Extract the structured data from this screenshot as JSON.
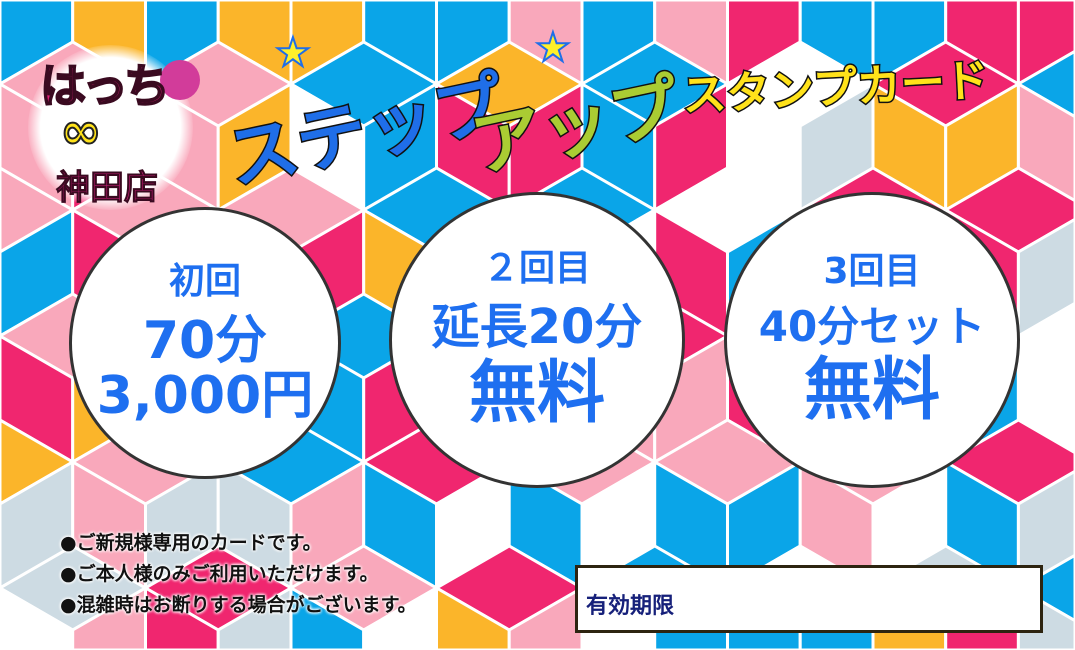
{
  "colors": {
    "pink": "#f0266f",
    "blue": "#0aa5e8",
    "yellow": "#fbb52a",
    "light_pink": "#f9a8bb",
    "grey": "#cddbe3",
    "white": "#ffffff",
    "text_blue": "#1e6ff0"
  },
  "logo": {
    "name": "はっち",
    "infinity": "∞",
    "shop": "神田店"
  },
  "title": {
    "part1": "ステップ",
    "part2": "アップ",
    "part3": "スタンプカード"
  },
  "stamps": [
    {
      "visit": "初回",
      "line1": "70分",
      "line2": "3,000円"
    },
    {
      "visit": "２回目",
      "line1": "延長20分",
      "line2": "無料"
    },
    {
      "visit": "3回目",
      "line1": "40分セット",
      "line2": "無料"
    }
  ],
  "notes": [
    "●ご新規様専用のカードです。",
    "●ご本人様のみご利用いただけます。",
    "●混雑時はお断りする場合がございます。"
  ],
  "expiry": {
    "label": "有効期限"
  }
}
